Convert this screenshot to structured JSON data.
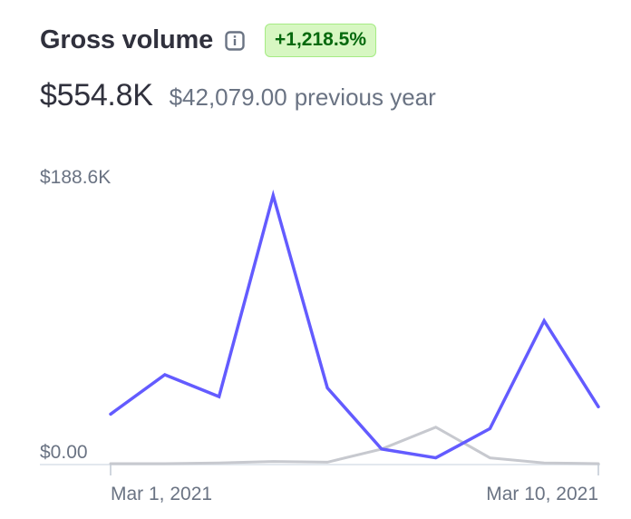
{
  "header": {
    "title": "Gross volume",
    "info_icon": "info-icon",
    "change_badge": "+1,218.5%",
    "colors": {
      "badge_bg": "#d7f7c2",
      "badge_text": "#05690d"
    }
  },
  "summary": {
    "total": "$554.8K",
    "previous_value": "$42,079.00",
    "previous_suffix": "previous year"
  },
  "chart_data": {
    "type": "line",
    "title": "",
    "xlabel": "",
    "ylabel": "",
    "x": [
      "Mar 1, 2021",
      "Mar 2, 2021",
      "Mar 3, 2021",
      "Mar 4, 2021",
      "Mar 5, 2021",
      "Mar 6, 2021",
      "Mar 7, 2021",
      "Mar 8, 2021",
      "Mar 9, 2021",
      "Mar 10, 2021"
    ],
    "x_tick_labels": [
      "Mar 1, 2021",
      "Mar 10, 2021"
    ],
    "y_tick_labels": [
      "$188.6K",
      "$0.00"
    ],
    "ylim": [
      0,
      188600
    ],
    "grid": false,
    "series": [
      {
        "color": "#635bff",
        "values": [
          34000,
          61000,
          46000,
          184000,
          52000,
          10000,
          4000,
          24000,
          98000,
          39000
        ]
      },
      {
        "color": "#c7c9cf",
        "values": [
          0,
          0,
          500,
          1500,
          1000,
          10000,
          25000,
          4000,
          500,
          0
        ]
      }
    ]
  }
}
